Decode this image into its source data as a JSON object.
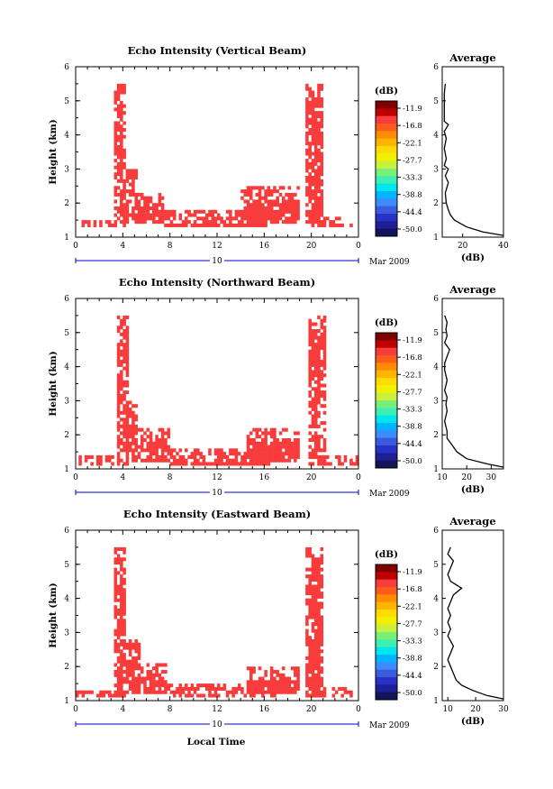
{
  "colors": {
    "echo_fill": "#f83c3c",
    "axis": "#000000",
    "date_bar": "#0000cc"
  },
  "colorbar": {
    "label": "(dB)",
    "ticks": [
      "-11.9",
      "-16.8",
      "-22.1",
      "-27.7",
      "-33.3",
      "-38.8",
      "-44.4",
      "-50.0"
    ],
    "colors": [
      "#7f0000",
      "#bf0000",
      "#f83c3c",
      "#ff5a1e",
      "#ff8c00",
      "#ffb400",
      "#ffdc00",
      "#f0f000",
      "#c8f03c",
      "#78f078",
      "#3cf0b4",
      "#00e6f0",
      "#00b4ff",
      "#3c8cff",
      "#3c5adc",
      "#2832c8",
      "#1e1e96",
      "#14145a"
    ]
  },
  "shared": {
    "xlabel": "Local Time",
    "date_label": "Mar 2009",
    "date_bar_label": "10",
    "avg_title": "Average",
    "avg_xlabel": "(dB)",
    "ylabel": "Height (km)"
  },
  "chart_data": [
    {
      "type": "heatmap",
      "title": "Echo Intensity (Vertical Beam)",
      "x": {
        "label": "Local Time",
        "range": [
          0,
          24
        ],
        "ticks": [
          "0",
          "4",
          "8",
          "12",
          "16",
          "20",
          "0"
        ]
      },
      "y": {
        "label": "Height (km)",
        "range": [
          1,
          6
        ],
        "ticks": [
          "1",
          "2",
          "3",
          "4",
          "5",
          "6"
        ]
      },
      "echo_regions_dB_above_-11.9": [
        {
          "t": [
            0.5,
            3.5
          ],
          "h": [
            1.3,
            1.5
          ]
        },
        {
          "t": [
            3.3,
            4.2
          ],
          "h": [
            1.3,
            5.45
          ]
        },
        {
          "t": [
            4.2,
            5.1
          ],
          "h": [
            1.4,
            3.0
          ]
        },
        {
          "t": [
            5.1,
            7.4
          ],
          "h": [
            1.4,
            2.3
          ]
        },
        {
          "t": [
            7.4,
            16.5
          ],
          "h": [
            1.3,
            1.8
          ]
        },
        {
          "t": [
            14.0,
            19.0
          ],
          "h": [
            1.4,
            2.5
          ]
        },
        {
          "t": [
            19.5,
            21.0
          ],
          "h": [
            1.3,
            5.45
          ]
        },
        {
          "t": [
            21.0,
            22.3
          ],
          "h": [
            1.3,
            1.6
          ]
        },
        {
          "t": [
            22.3,
            23.4
          ],
          "h": [
            1.3,
            1.4
          ]
        }
      ],
      "average": {
        "title": "Average",
        "xlabel": "(dB)",
        "xrange": [
          10,
          40
        ],
        "xticks": [
          "20",
          "40"
        ],
        "height": [
          1.05,
          1.15,
          1.3,
          1.5,
          1.65,
          1.8,
          2.0,
          2.3,
          2.6,
          2.8,
          3.0,
          3.1,
          3.3,
          3.6,
          3.9,
          4.1,
          4.3,
          4.4,
          4.6,
          4.9,
          5.2,
          5.5
        ],
        "db": [
          40,
          30,
          22,
          16,
          14,
          13,
          12,
          11.5,
          13,
          11.5,
          13,
          11,
          12,
          11,
          12,
          11,
          13,
          11,
          11,
          11,
          11,
          11.5
        ]
      }
    },
    {
      "type": "heatmap",
      "title": "Echo Intensity (Northward Beam)",
      "x": {
        "label": "Local Time",
        "range": [
          0,
          24
        ],
        "ticks": [
          "0",
          "4",
          "8",
          "12",
          "16",
          "20",
          "0"
        ]
      },
      "y": {
        "label": "Height (km)",
        "range": [
          1,
          6
        ],
        "ticks": [
          "1",
          "2",
          "3",
          "4",
          "5",
          "6"
        ]
      },
      "echo_regions_dB_above_-11.9": [
        {
          "t": [
            0.2,
            3.5
          ],
          "h": [
            1.1,
            1.35
          ]
        },
        {
          "t": [
            3.4,
            4.3
          ],
          "h": [
            1.1,
            5.45
          ]
        },
        {
          "t": [
            4.3,
            5.2
          ],
          "h": [
            1.2,
            3.0
          ]
        },
        {
          "t": [
            5.2,
            7.8
          ],
          "h": [
            1.2,
            2.2
          ]
        },
        {
          "t": [
            7.8,
            16.5
          ],
          "h": [
            1.1,
            1.6
          ]
        },
        {
          "t": [
            14.5,
            19.0
          ],
          "h": [
            1.2,
            2.2
          ]
        },
        {
          "t": [
            19.7,
            21.0
          ],
          "h": [
            1.1,
            5.45
          ]
        },
        {
          "t": [
            21.0,
            23.8
          ],
          "h": [
            1.1,
            1.4
          ]
        }
      ],
      "average": {
        "title": "Average",
        "xlabel": "(dB)",
        "xrange": [
          10,
          35
        ],
        "xticks": [
          "10",
          "20",
          "30"
        ],
        "height": [
          1.05,
          1.15,
          1.3,
          1.5,
          1.7,
          1.9,
          2.1,
          2.4,
          2.7,
          2.9,
          3.1,
          3.3,
          3.6,
          3.9,
          4.1,
          4.3,
          4.5,
          4.7,
          4.9,
          5.1,
          5.3,
          5.5
        ],
        "db": [
          35,
          28,
          20,
          16,
          14,
          12,
          12,
          11,
          12,
          11.5,
          12,
          11,
          12,
          11,
          11,
          12,
          13,
          11,
          12,
          11.5,
          12,
          11
        ]
      }
    },
    {
      "type": "heatmap",
      "title": "Echo Intensity (Eastward Beam)",
      "x": {
        "label": "Local Time",
        "range": [
          0,
          24
        ],
        "ticks": [
          "0",
          "4",
          "8",
          "12",
          "16",
          "20",
          "0"
        ]
      },
      "y": {
        "label": "Height (km)",
        "range": [
          1,
          6
        ],
        "ticks": [
          "1",
          "2",
          "3",
          "4",
          "5",
          "6"
        ]
      },
      "echo_regions_dB_above_-11.9": [
        {
          "t": [
            0.0,
            3.3
          ],
          "h": [
            1.1,
            1.3
          ]
        },
        {
          "t": [
            3.2,
            4.2
          ],
          "h": [
            1.1,
            5.45
          ]
        },
        {
          "t": [
            4.2,
            5.3
          ],
          "h": [
            1.2,
            2.8
          ]
        },
        {
          "t": [
            5.3,
            7.7
          ],
          "h": [
            1.2,
            2.1
          ]
        },
        {
          "t": [
            7.7,
            17.0
          ],
          "h": [
            1.1,
            1.5
          ]
        },
        {
          "t": [
            14.5,
            19.0
          ],
          "h": [
            1.2,
            2.0
          ]
        },
        {
          "t": [
            19.5,
            21.0
          ],
          "h": [
            1.1,
            5.45
          ]
        },
        {
          "t": [
            21.0,
            23.5
          ],
          "h": [
            1.1,
            1.4
          ]
        }
      ],
      "average": {
        "title": "Average",
        "xlabel": "(dB)",
        "xrange": [
          8,
          30
        ],
        "xticks": [
          "10",
          "20",
          "30"
        ],
        "height": [
          1.05,
          1.15,
          1.3,
          1.45,
          1.6,
          1.8,
          2.0,
          2.2,
          2.4,
          2.6,
          2.9,
          3.1,
          3.3,
          3.5,
          3.7,
          3.9,
          4.1,
          4.3,
          4.5,
          4.7,
          4.9,
          5.1,
          5.3,
          5.5
        ],
        "db": [
          30,
          24,
          19,
          15,
          13,
          12,
          11,
          10,
          11,
          12,
          10,
          11,
          10,
          11,
          10,
          11,
          12,
          15,
          11,
          10,
          11,
          12,
          10,
          11
        ]
      }
    }
  ]
}
